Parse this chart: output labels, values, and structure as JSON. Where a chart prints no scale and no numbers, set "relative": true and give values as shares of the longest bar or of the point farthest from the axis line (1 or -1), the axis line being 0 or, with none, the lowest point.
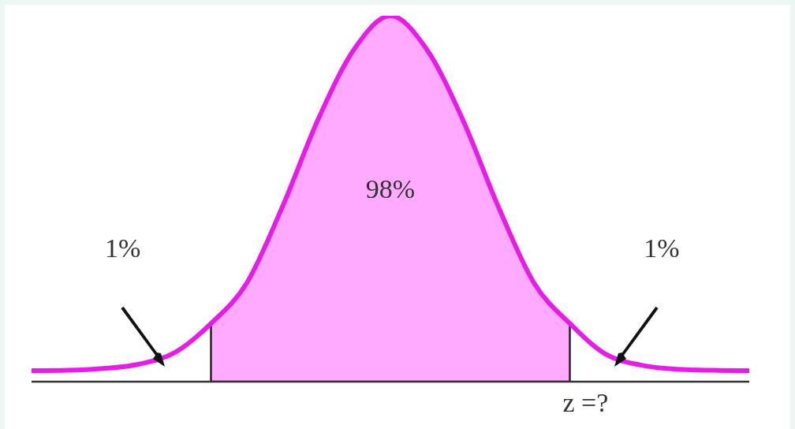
{
  "chart_data": {
    "type": "line",
    "relative": true,
    "categories": [
      null,
      null,
      null,
      null,
      null,
      null,
      null,
      null,
      null,
      null,
      null,
      null,
      null,
      null,
      null,
      null,
      null,
      null,
      null,
      null,
      null
    ],
    "series": [
      {
        "type": "area",
        "color": "#ffaaff",
        "values": [
          null,
          null,
          null,
          null,
          null,
          0.159,
          0.27,
          0.48,
          0.72,
          0.91,
          1,
          0.91,
          0.72,
          0.48,
          0.27,
          0.159,
          null,
          null,
          null,
          null,
          null
        ]
      },
      {
        "color": "#e51ee5",
        "values": [
          0.03,
          0.031,
          0.036,
          0.048,
          0.08,
          0.159,
          0.27,
          0.48,
          0.72,
          0.91,
          1,
          0.91,
          0.72,
          0.48,
          0.27,
          0.159,
          0.075,
          0.045,
          0.034,
          0.031,
          0.03
        ]
      }
    ],
    "annotations": [
      "98%",
      "1%",
      "1%",
      "z =?"
    ]
  }
}
